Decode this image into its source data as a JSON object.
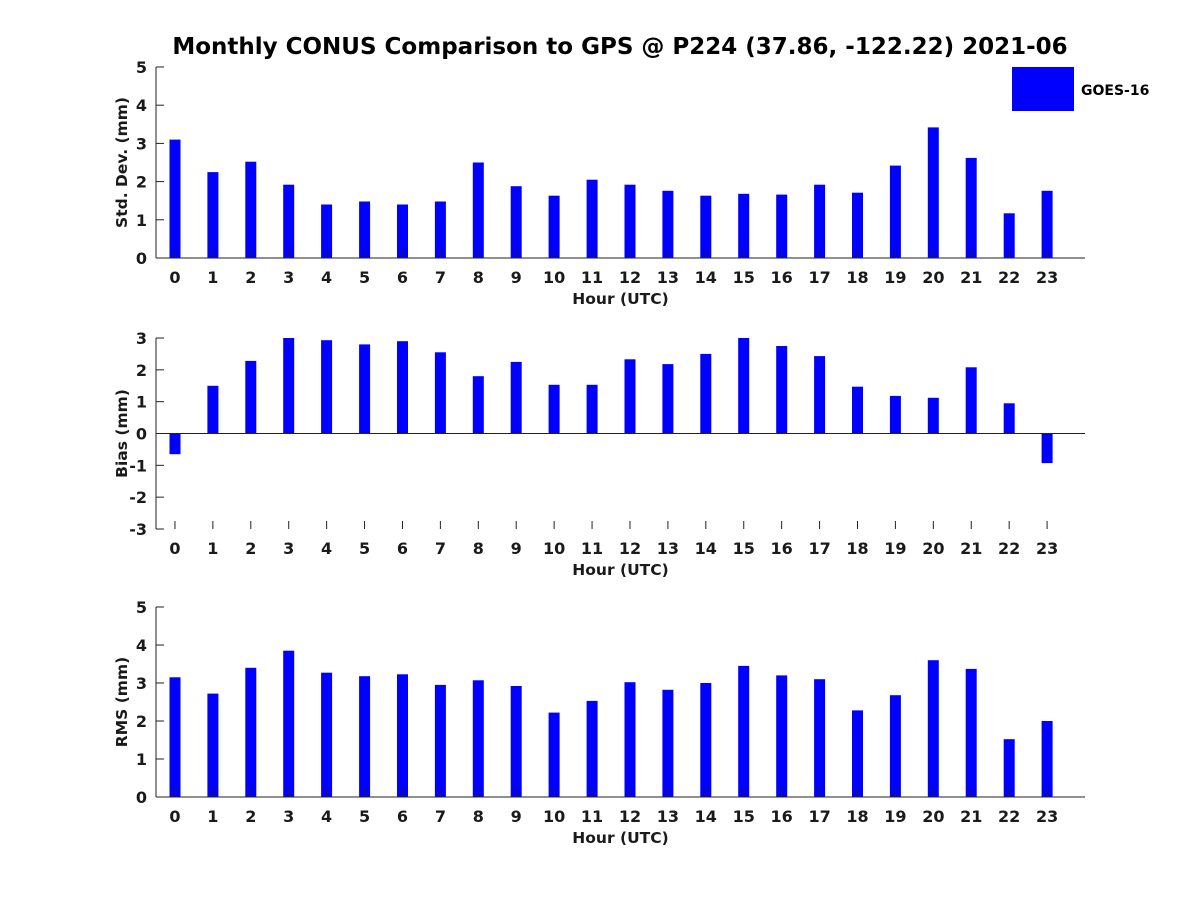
{
  "title": "Monthly CONUS Comparison to GPS @ P224 (37.86, -122.22) 2021-06",
  "legend": {
    "label": "GOES-16",
    "color": "#0000ff",
    "placement": "top-right"
  },
  "chart_data": [
    {
      "type": "bar",
      "xlabel": "Hour (UTC)",
      "ylabel": "Std. Dev. (mm)",
      "categories": [
        "0",
        "1",
        "2",
        "3",
        "4",
        "5",
        "6",
        "7",
        "8",
        "9",
        "10",
        "11",
        "12",
        "13",
        "14",
        "15",
        "16",
        "17",
        "18",
        "19",
        "20",
        "21",
        "22",
        "23"
      ],
      "series": [
        {
          "name": "GOES-16",
          "color": "#0000ff",
          "values": [
            3.1,
            2.25,
            2.52,
            1.92,
            1.4,
            1.48,
            1.4,
            1.48,
            2.5,
            1.88,
            1.63,
            2.05,
            1.92,
            1.76,
            1.63,
            1.68,
            1.66,
            1.92,
            1.71,
            2.42,
            3.42,
            2.62,
            1.17,
            1.76
          ]
        }
      ],
      "ylim": [
        0,
        5
      ],
      "yticks": [
        0,
        1,
        2,
        3,
        4,
        5
      ],
      "grid": false
    },
    {
      "type": "bar",
      "xlabel": "Hour (UTC)",
      "ylabel": "Bias (mm)",
      "categories": [
        "0",
        "1",
        "2",
        "3",
        "4",
        "5",
        "6",
        "7",
        "8",
        "9",
        "10",
        "11",
        "12",
        "13",
        "14",
        "15",
        "16",
        "17",
        "18",
        "19",
        "20",
        "21",
        "22",
        "23"
      ],
      "series": [
        {
          "name": "GOES-16",
          "color": "#0000ff",
          "values": [
            -0.65,
            1.5,
            2.28,
            3.0,
            2.93,
            2.8,
            2.9,
            2.55,
            1.8,
            2.25,
            1.53,
            1.53,
            2.33,
            2.18,
            2.5,
            3.0,
            2.75,
            2.43,
            1.47,
            1.18,
            1.12,
            2.08,
            0.95,
            -0.93
          ]
        }
      ],
      "ylim": [
        -3,
        3
      ],
      "yticks": [
        -3,
        -2,
        -1,
        0,
        1,
        2,
        3
      ],
      "grid": false
    },
    {
      "type": "bar",
      "xlabel": "Hour (UTC)",
      "ylabel": "RMS (mm)",
      "categories": [
        "0",
        "1",
        "2",
        "3",
        "4",
        "5",
        "6",
        "7",
        "8",
        "9",
        "10",
        "11",
        "12",
        "13",
        "14",
        "15",
        "16",
        "17",
        "18",
        "19",
        "20",
        "21",
        "22",
        "23"
      ],
      "series": [
        {
          "name": "GOES-16",
          "color": "#0000ff",
          "values": [
            3.15,
            2.72,
            3.4,
            3.85,
            3.27,
            3.18,
            3.23,
            2.95,
            3.07,
            2.92,
            2.22,
            2.53,
            3.02,
            2.82,
            3.0,
            3.45,
            3.2,
            3.1,
            2.28,
            2.68,
            3.6,
            3.37,
            1.52,
            2.0
          ]
        }
      ],
      "ylim": [
        0,
        5
      ],
      "yticks": [
        0,
        1,
        2,
        3,
        4,
        5
      ],
      "grid": false
    }
  ]
}
